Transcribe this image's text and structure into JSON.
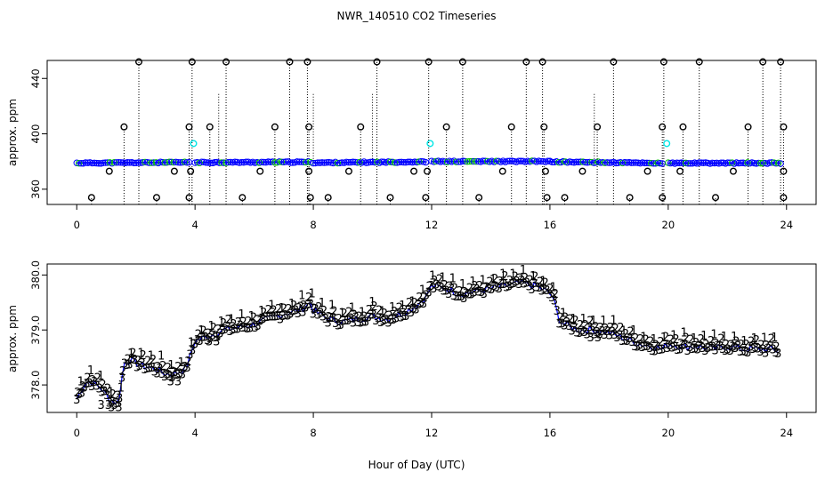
{
  "title": "NWR_140510  CO2 Timeseries",
  "xlabel": "Hour of Day (UTC)",
  "colors": {
    "black": "#000000",
    "blue": "#0000ff",
    "cyan": "#00e5e5",
    "green": "#00c000",
    "red": "#ff0000"
  },
  "chart_data": [
    {
      "type": "scatter",
      "name": "top-panel",
      "ylabel": "approx. ppm",
      "xlim": [
        -1.0,
        25.0
      ],
      "ylim": [
        349.0,
        453.0
      ],
      "xticks": [
        "0",
        "4",
        "8",
        "12",
        "16",
        "20",
        "24"
      ],
      "xtick_values": [
        0,
        4,
        8,
        12,
        16,
        20,
        24
      ],
      "yticks": [
        "360",
        "400",
        "440"
      ],
      "ytick_values": [
        360,
        400,
        440
      ],
      "baseline_segments": [
        {
          "x": [
            0.0,
            3.8
          ],
          "y": [
            378.9,
            379.4
          ]
        },
        {
          "x": [
            4.0,
            7.9
          ],
          "y": [
            379.3,
            379.6
          ]
        },
        {
          "x": [
            8.0,
            11.8
          ],
          "y": [
            379.1,
            379.8
          ]
        },
        {
          "x": [
            12.0,
            16.0
          ],
          "y": [
            380.0,
            380.1
          ]
        },
        {
          "x": [
            16.0,
            19.8
          ],
          "y": [
            379.8,
            378.8
          ]
        },
        {
          "x": [
            20.0,
            23.8
          ],
          "y": [
            378.8,
            378.9
          ]
        }
      ],
      "cyan_points": {
        "x": [
          3.95,
          11.95,
          19.95
        ],
        "y": [
          393,
          393,
          393
        ]
      },
      "outlier_highs": [
        2.1,
        3.9,
        5.05,
        7.2,
        7.8,
        10.15,
        11.9,
        13.05,
        15.2,
        15.75,
        18.15,
        19.85,
        21.05,
        23.2,
        23.8
      ],
      "outlier_high_value": 452,
      "mid_highs": [
        1.6,
        3.8,
        4.5,
        6.7,
        7.85,
        9.6,
        12.5,
        14.7,
        15.8,
        17.6,
        19.8,
        20.5,
        22.7,
        23.9
      ],
      "mid_high_value": 405,
      "lows": [
        0.5,
        2.7,
        3.8,
        5.6,
        7.9,
        8.5,
        10.6,
        11.8,
        13.6,
        15.9,
        16.5,
        18.7,
        19.8,
        21.6,
        23.9
      ],
      "low_value": 354,
      "small_lows": [
        1.1,
        3.3,
        3.85,
        6.2,
        7.85,
        9.2,
        11.4,
        11.85,
        14.4,
        15.85,
        17.1,
        19.3,
        20.4,
        22.2,
        23.9
      ],
      "small_low_value": 373,
      "spike_tops": [
        4.8,
        8.0,
        10.0,
        17.5
      ]
    },
    {
      "type": "scatter",
      "name": "bottom-panel",
      "ylabel": "approx. ppm",
      "xlim": [
        -1.0,
        25.0
      ],
      "ylim": [
        377.5,
        380.2
      ],
      "xticks": [
        "0",
        "4",
        "8",
        "12",
        "16",
        "20",
        "24"
      ],
      "xtick_values": [
        0,
        4,
        8,
        12,
        16,
        20,
        24
      ],
      "yticks": [
        "378.0",
        "379.0",
        "380.0"
      ],
      "ytick_values": [
        378.0,
        379.0,
        380.0
      ],
      "series": [
        {
          "name": "3",
          "marker": "3",
          "color": "#0000ff"
        },
        {
          "name": "2",
          "marker": "2",
          "color": "#00c000"
        },
        {
          "name": "1",
          "marker": "1",
          "color": "#ff0000"
        }
      ],
      "anchors": {
        "x": [
          0.0,
          0.3,
          0.5,
          0.8,
          1.1,
          1.4,
          1.6,
          1.8,
          2.2,
          2.6,
          3.0,
          3.3,
          3.7,
          4.0,
          4.5,
          5.0,
          5.5,
          6.0,
          6.5,
          7.0,
          7.5,
          7.9,
          8.0,
          8.5,
          9.0,
          9.5,
          10.0,
          10.5,
          11.0,
          11.5,
          11.8,
          12.0,
          12.5,
          13.0,
          13.5,
          14.0,
          14.5,
          15.0,
          15.5,
          15.9,
          16.1,
          16.3,
          16.5,
          17.0,
          17.5,
          18.0,
          18.5,
          19.0,
          19.5,
          19.8,
          20.0,
          20.5,
          21.0,
          21.5,
          22.0,
          22.5,
          23.0,
          23.5,
          23.8
        ],
        "y": [
          377.75,
          378.05,
          378.05,
          377.95,
          377.75,
          377.65,
          378.4,
          378.45,
          378.35,
          378.3,
          378.2,
          378.2,
          378.3,
          378.8,
          378.9,
          379.0,
          379.05,
          379.1,
          379.2,
          379.3,
          379.35,
          379.5,
          379.35,
          379.2,
          379.15,
          379.2,
          379.25,
          379.2,
          379.3,
          379.45,
          379.6,
          379.8,
          379.75,
          379.65,
          379.7,
          379.75,
          379.8,
          379.85,
          379.8,
          379.7,
          379.6,
          379.2,
          379.1,
          379.0,
          379.0,
          378.95,
          378.85,
          378.75,
          378.7,
          378.65,
          378.75,
          378.7,
          378.7,
          378.65,
          378.7,
          378.65,
          378.65,
          378.65,
          378.6
        ]
      },
      "gap_x": [
        1.3,
        3.95,
        7.95,
        11.9,
        15.95,
        19.9
      ],
      "data_labels": [
        "1",
        "2",
        "3",
        "33"
      ]
    }
  ]
}
